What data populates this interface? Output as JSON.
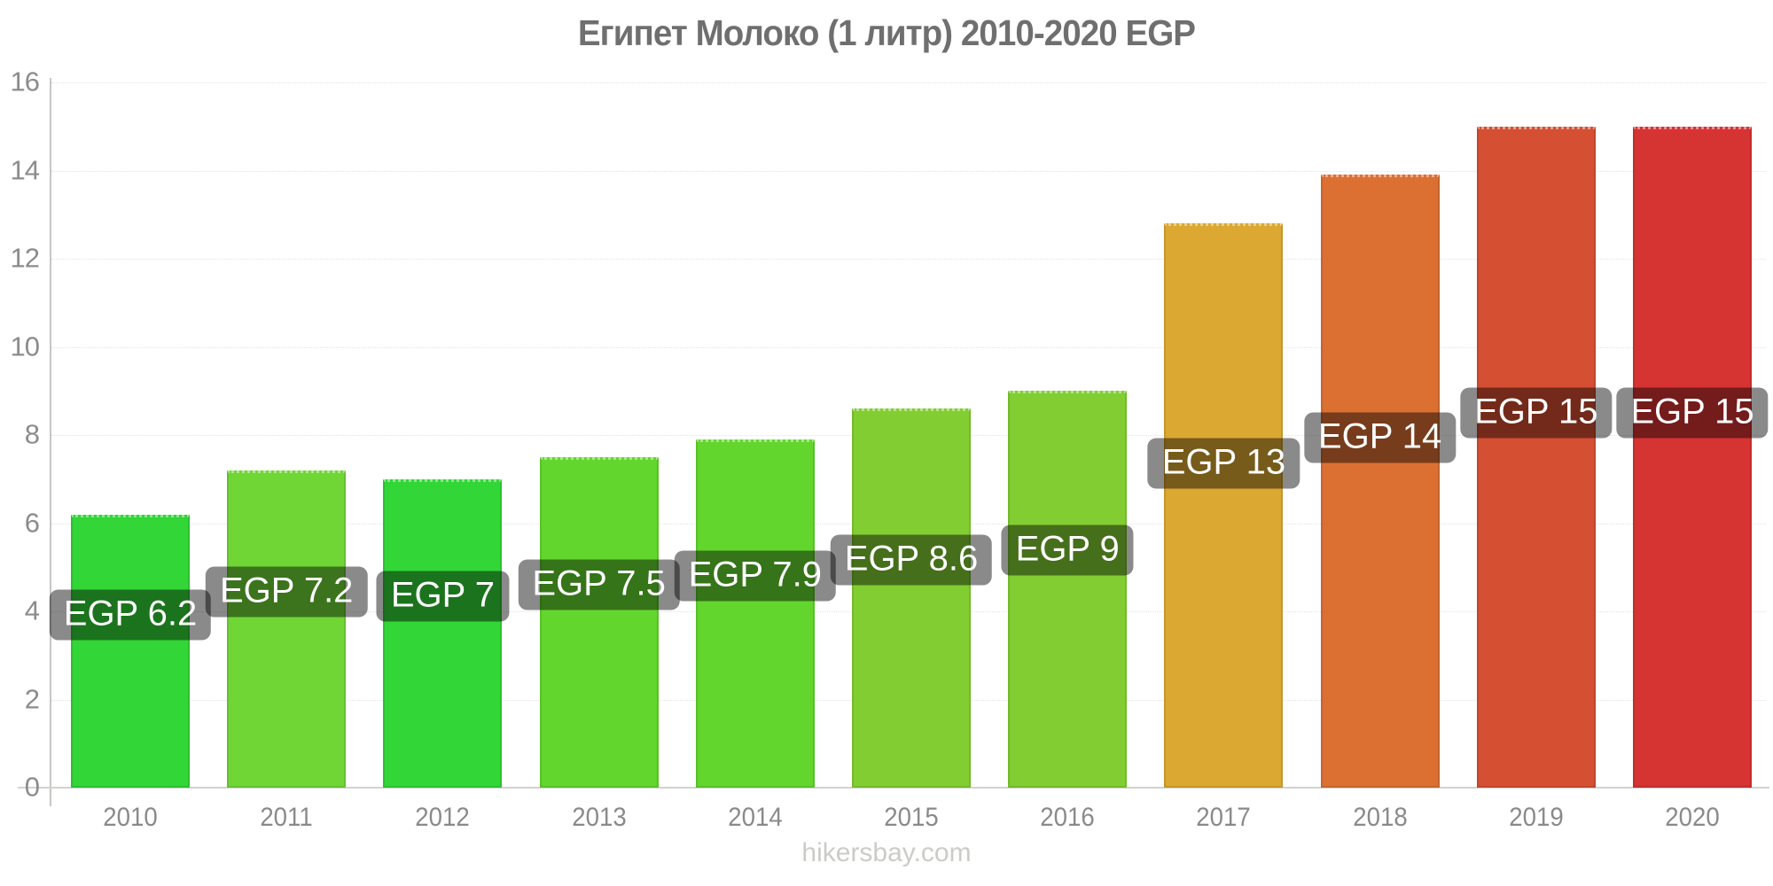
{
  "page": {
    "footer": "hikersbay.com"
  },
  "chart_data": {
    "type": "bar",
    "title": "Египет Молоко (1 литр) 2010-2020 EGP",
    "currency": "EGP",
    "categories": [
      "2010",
      "2011",
      "2012",
      "2013",
      "2014",
      "2015",
      "2016",
      "2017",
      "2018",
      "2019",
      "2020"
    ],
    "values": [
      6.2,
      7.2,
      7,
      7.5,
      7.9,
      8.6,
      9,
      12.8,
      13.9,
      15,
      15
    ],
    "bar_labels": [
      "EGP 6.2",
      "EGP 7.2",
      "EGP 7",
      "EGP 7.5",
      "EGP 7.9",
      "EGP 8.6",
      "EGP 9",
      "EGP 13",
      "EGP 14",
      "EGP 15",
      "EGP 15"
    ],
    "bar_colors": [
      "#32d636",
      "#70d636",
      "#32d636",
      "#63d62e",
      "#63d62e",
      "#82ce32",
      "#82ce32",
      "#dba832",
      "#dc7033",
      "#d54f33",
      "#d63333"
    ],
    "label_bg": "rgba(0,0,0,0.46)",
    "label_text_color": "#ffffff",
    "xlabel": "",
    "ylabel": "",
    "ylim": [
      0,
      16
    ],
    "yticks": [
      0,
      2,
      4,
      6,
      8,
      10,
      12,
      14,
      16
    ],
    "grid": false,
    "legend_position": "none"
  }
}
